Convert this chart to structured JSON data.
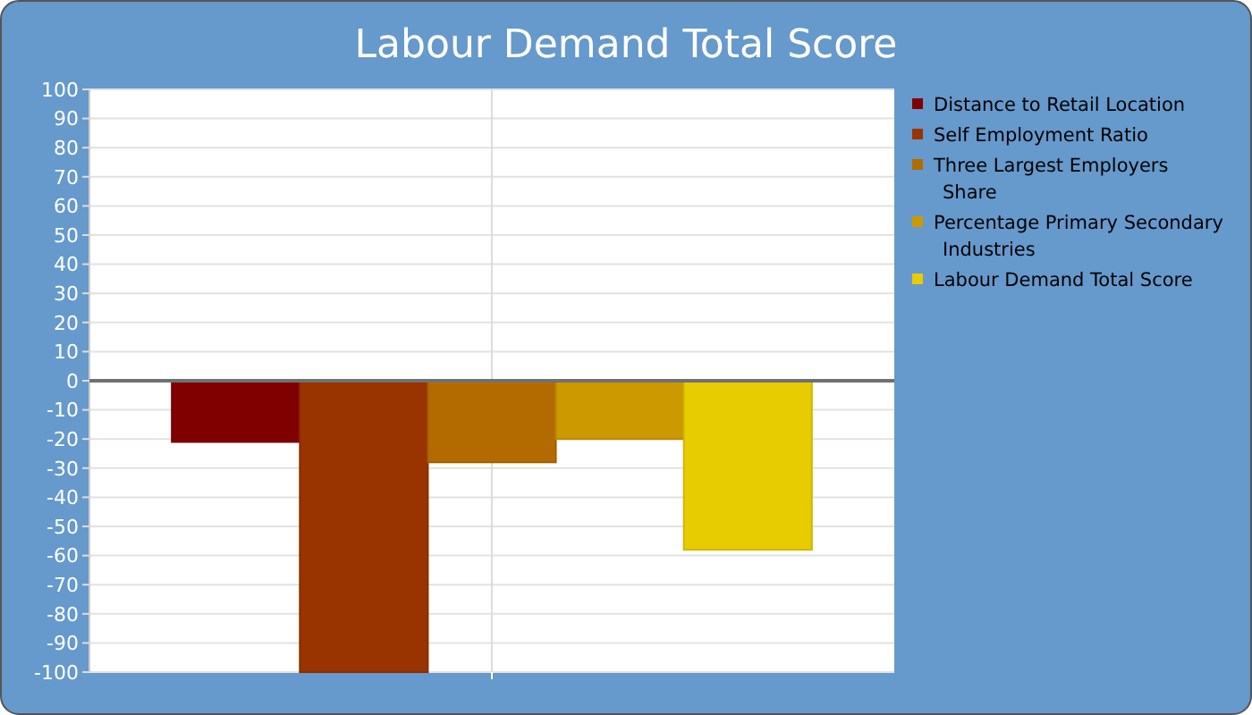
{
  "chart_data": {
    "type": "bar",
    "title": "Labour Demand Total Score",
    "categories": [
      null
    ],
    "series": [
      {
        "name": "Distance to Retail Location",
        "color": "#800000",
        "values": [
          -21
        ]
      },
      {
        "name": "Self Employment Ratio",
        "color": "#993300",
        "values": [
          -100
        ]
      },
      {
        "name": "Three Largest Employers Share",
        "color": "#b36b00",
        "values": [
          -28
        ]
      },
      {
        "name": "Percentage Primary Secondary Industries",
        "color": "#cc9900",
        "values": [
          -20
        ]
      },
      {
        "name": "Labour Demand Total Score",
        "color": "#e6cc00",
        "values": [
          -58
        ]
      }
    ],
    "ylim": [
      -100,
      100
    ],
    "yticks": [
      -100,
      -90,
      -80,
      -70,
      -60,
      -50,
      -40,
      -30,
      -20,
      -10,
      0,
      10,
      20,
      30,
      40,
      50,
      60,
      70,
      80,
      90,
      100
    ],
    "grid": true,
    "legend": "right"
  }
}
